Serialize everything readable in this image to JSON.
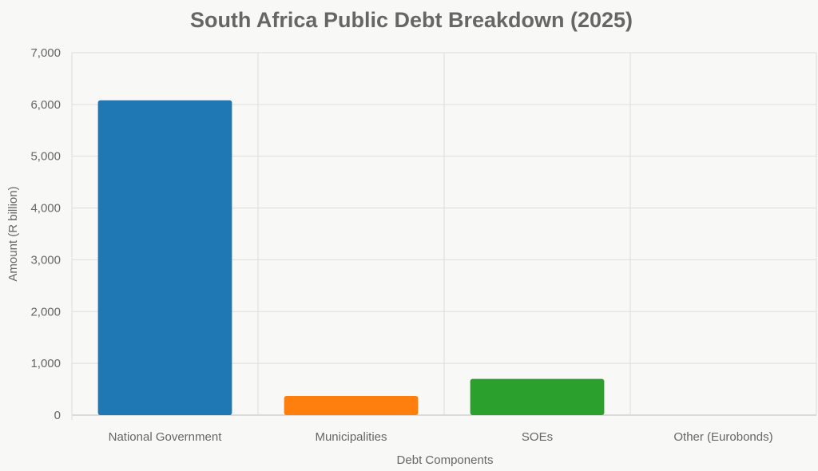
{
  "chart_data": {
    "type": "bar",
    "title": "South Africa Public Debt Breakdown (2025)",
    "xlabel": "Debt Components",
    "ylabel": "Amount (R billion)",
    "categories": [
      "National Government",
      "Municipalities",
      "SOEs",
      "Other (Eurobonds)"
    ],
    "values": [
      6080,
      370,
      700,
      0
    ],
    "colors": [
      "#1f77b4",
      "#ff7f0e",
      "#2ca02c",
      "#d62728"
    ],
    "ylim": [
      0,
      7000
    ],
    "yticks": [
      "0",
      "1,000",
      "2,000",
      "3,000",
      "4,000",
      "5,000",
      "6,000",
      "7,000"
    ],
    "grid": true,
    "legend": "none"
  }
}
